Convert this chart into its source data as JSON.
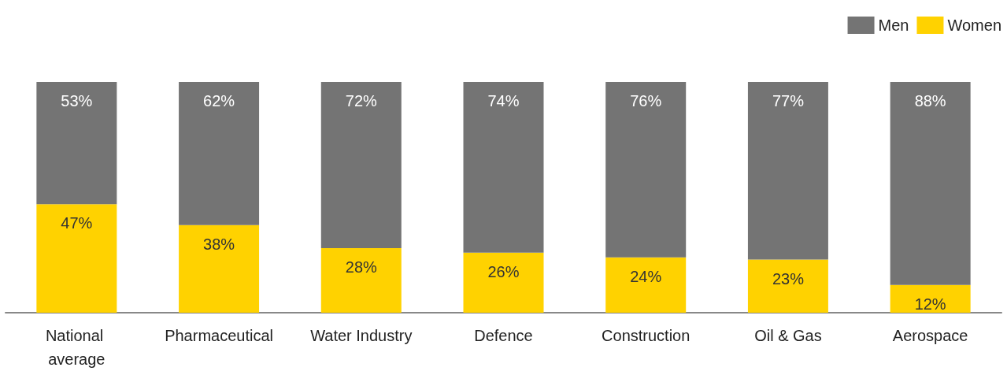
{
  "chart_data": {
    "type": "bar",
    "stacked": true,
    "legend": "top right",
    "categories": [
      "National average",
      "Pharmaceutical",
      "Water Industry",
      "Defence",
      "Construction",
      "Oil & Gas",
      "Aerospace"
    ],
    "series": [
      {
        "name": "Women",
        "color": "#ffd200",
        "values": [
          47,
          38,
          28,
          26,
          24,
          23,
          12
        ],
        "value_labels": [
          "47%",
          "38%",
          "28%",
          "26%",
          "24%",
          "23%",
          "12%"
        ]
      },
      {
        "name": "Men",
        "color": "#747474",
        "values": [
          53,
          62,
          72,
          74,
          76,
          77,
          88
        ],
        "value_labels": [
          "53%",
          "62%",
          "72%",
          "74%",
          "76%",
          "77%",
          "88%"
        ]
      }
    ]
  }
}
